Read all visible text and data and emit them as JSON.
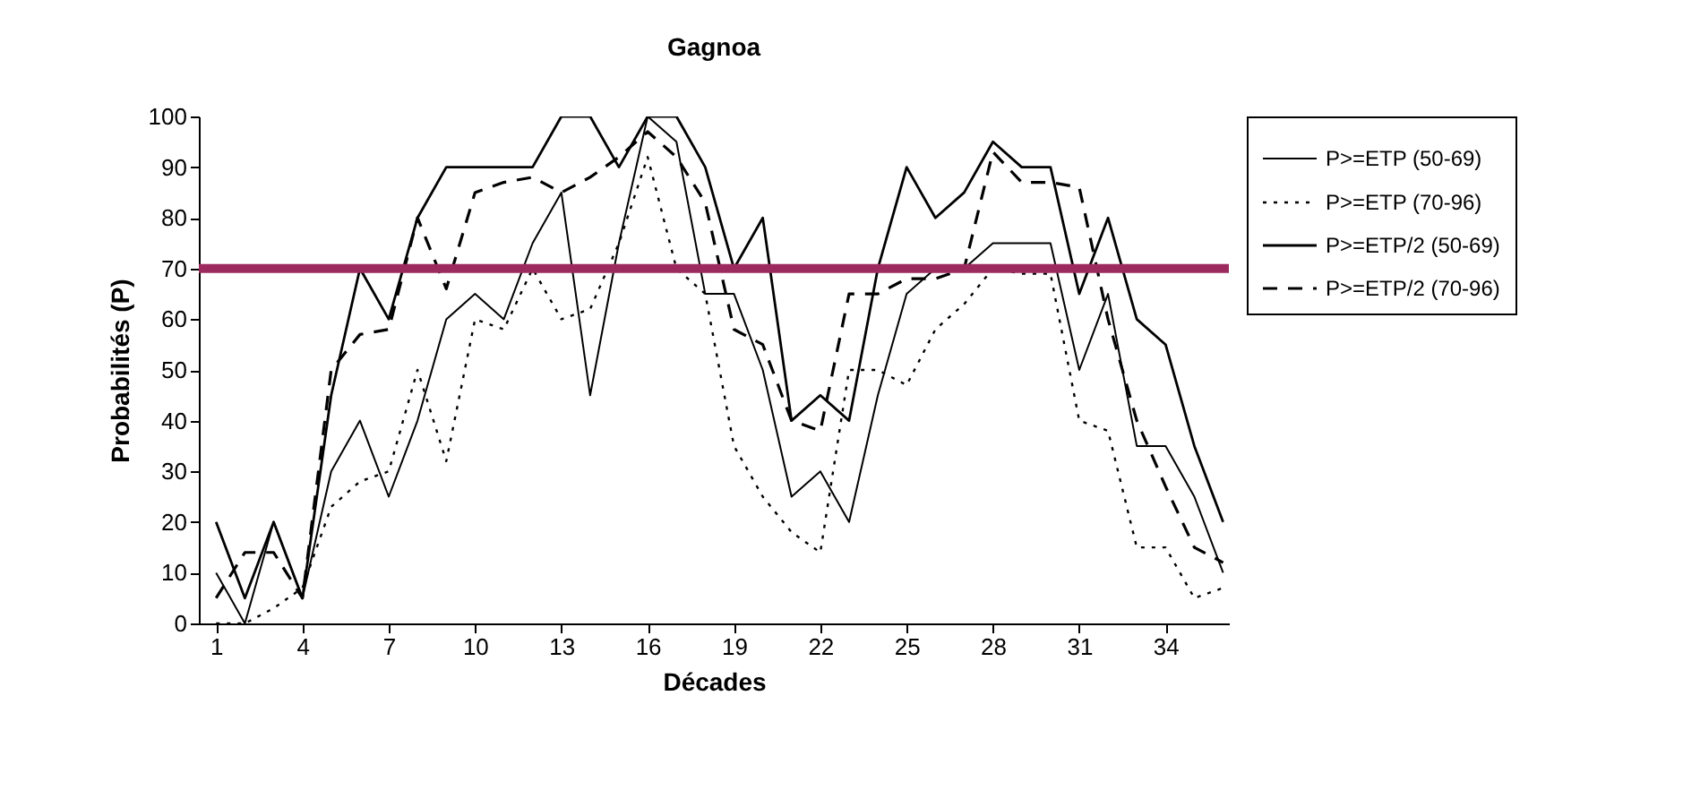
{
  "chart_data": {
    "type": "line",
    "title": "Gagnoa",
    "xlabel": "Décades",
    "ylabel": "Probabilités (P)",
    "x": [
      1,
      2,
      3,
      4,
      5,
      6,
      7,
      8,
      9,
      10,
      11,
      12,
      13,
      14,
      15,
      16,
      17,
      18,
      19,
      20,
      21,
      22,
      23,
      24,
      25,
      26,
      27,
      28,
      29,
      30,
      31,
      32,
      33,
      34,
      35,
      36
    ],
    "series": [
      {
        "name": "P>=ETP (50-69)",
        "color": "#000000",
        "line_style": "solid",
        "values": [
          10,
          0,
          20,
          5,
          30,
          40,
          25,
          40,
          60,
          65,
          60,
          75,
          85,
          45,
          75,
          100,
          95,
          65,
          65,
          50,
          25,
          30,
          20,
          45,
          65,
          70,
          70,
          75,
          75,
          75,
          50,
          65,
          35,
          35,
          25,
          10
        ]
      },
      {
        "name": "P>=ETP (70-96)",
        "color": "#000000",
        "line_style": "dotted",
        "values": [
          0,
          0,
          3,
          7,
          23,
          28,
          30,
          50,
          32,
          60,
          58,
          70,
          60,
          62,
          75,
          92,
          70,
          65,
          35,
          25,
          18,
          14,
          50,
          50,
          47,
          58,
          63,
          70,
          69,
          69,
          40,
          38,
          15,
          15,
          5,
          7
        ]
      },
      {
        "name": "P>=ETP/2 (50-69)",
        "color": "#000000",
        "line_style": "solid",
        "values": [
          20,
          5,
          20,
          5,
          45,
          70,
          60,
          80,
          90,
          90,
          90,
          90,
          100,
          100,
          90,
          100,
          100,
          90,
          70,
          80,
          40,
          45,
          40,
          70,
          90,
          80,
          85,
          95,
          90,
          90,
          65,
          80,
          60,
          55,
          35,
          20
        ]
      },
      {
        "name": "P>=ETP/2 (70-96)",
        "color": "#000000",
        "line_style": "dashed",
        "values": [
          5,
          14,
          14,
          5,
          50,
          57,
          58,
          80,
          66,
          85,
          87,
          88,
          85,
          88,
          92,
          97,
          92,
          83,
          58,
          55,
          40,
          38,
          65,
          65,
          68,
          68,
          70,
          93,
          87,
          87,
          86,
          60,
          40,
          27,
          15,
          12
        ]
      }
    ],
    "xlim": [
      0.4,
      36.2
    ],
    "xticks": [
      1,
      4,
      7,
      10,
      13,
      16,
      19,
      22,
      25,
      28,
      31,
      34
    ],
    "ylim": [
      0,
      100
    ],
    "yticks": [
      0,
      10,
      20,
      30,
      40,
      50,
      60,
      70,
      80,
      90,
      100
    ],
    "ref_lines": [
      {
        "axis": "y",
        "value": 70,
        "color": "#9b2a5e"
      }
    ],
    "grid": false,
    "legend": "right",
    "marker": "none"
  }
}
